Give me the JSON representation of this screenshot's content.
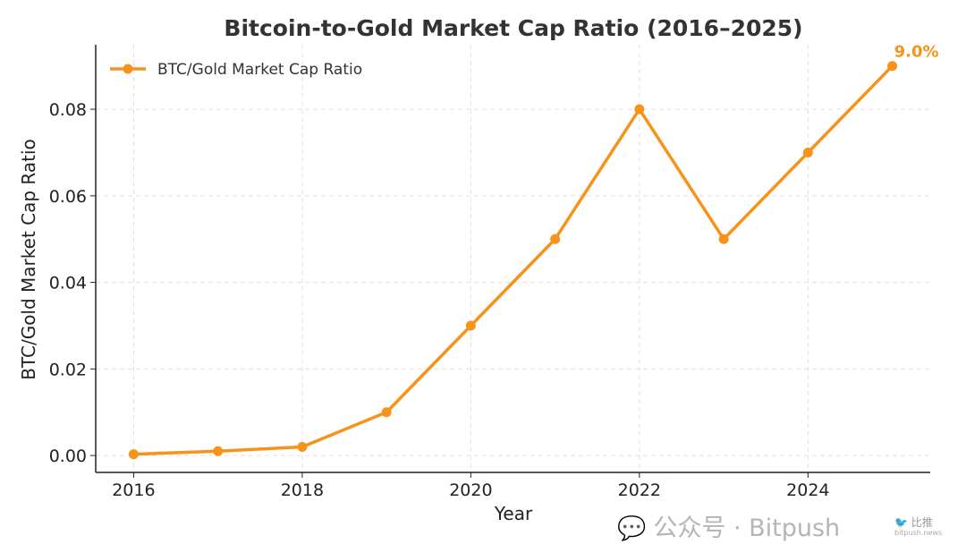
{
  "chart_data": {
    "type": "line",
    "title": "Bitcoin-to-Gold Market Cap Ratio (2016–2025)",
    "xlabel": "Year",
    "ylabel": "BTC/Gold Market Cap Ratio",
    "x": [
      2016,
      2017,
      2018,
      2019,
      2020,
      2021,
      2022,
      2023,
      2024,
      2025
    ],
    "series": [
      {
        "name": "BTC/Gold Market Cap Ratio",
        "color": "#F7931A",
        "values": [
          0.0003,
          0.001,
          0.002,
          0.01,
          0.03,
          0.05,
          0.08,
          0.05,
          0.07,
          0.09
        ]
      }
    ],
    "xticks": [
      2016,
      2018,
      2020,
      2022,
      2024
    ],
    "xtick_labels": [
      "2016",
      "2018",
      "2020",
      "2022",
      "2024"
    ],
    "yticks": [
      0,
      0.02,
      0.04,
      0.06,
      0.08
    ],
    "ytick_labels": [
      "0.00",
      "0.02",
      "0.04",
      "0.06",
      "0.08"
    ],
    "xlim": [
      2015.55,
      2025.45
    ],
    "ylim": [
      -0.0039,
      0.0949
    ],
    "grid": true,
    "legend": "top-left",
    "annotation": "9.0%"
  },
  "watermark": {
    "text": "公众号 · Bitpush",
    "logo_text": "比推",
    "logo_sub": "bitpush.news"
  }
}
